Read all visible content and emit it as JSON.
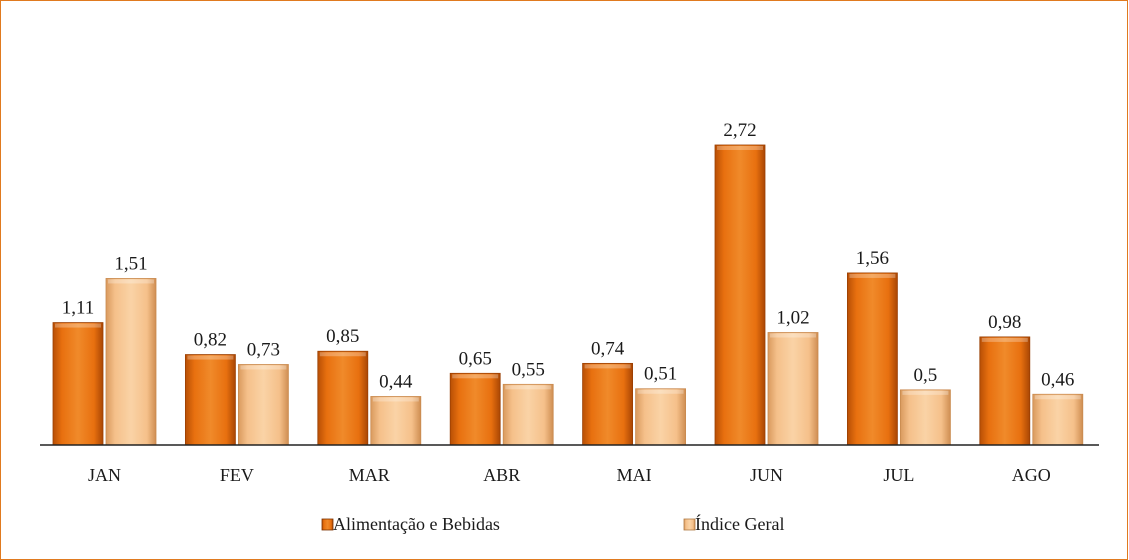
{
  "chart_data": {
    "type": "bar",
    "categories": [
      "JAN",
      "FEV",
      "MAR",
      "ABR",
      "MAI",
      "JUN",
      "JUL",
      "AGO"
    ],
    "series": [
      {
        "name": "Alimentação e Bebidas",
        "values": [
          1.11,
          0.82,
          0.85,
          0.65,
          0.74,
          2.72,
          1.56,
          0.98
        ],
        "labels": [
          "1,11",
          "0,82",
          "0,85",
          "0,65",
          "0,74",
          "2,72",
          "1,56",
          "0,98"
        ],
        "color": "#e8700f"
      },
      {
        "name": "Índice Geral",
        "values": [
          1.51,
          0.73,
          0.44,
          0.55,
          0.51,
          1.02,
          0.5,
          0.46
        ],
        "labels": [
          "1,51",
          "0,73",
          "0,44",
          "0,55",
          "0,51",
          "1,02",
          "0,5",
          "0,46"
        ],
        "color": "#f5c08a"
      }
    ],
    "legend_position": "bottom",
    "grid": false
  }
}
